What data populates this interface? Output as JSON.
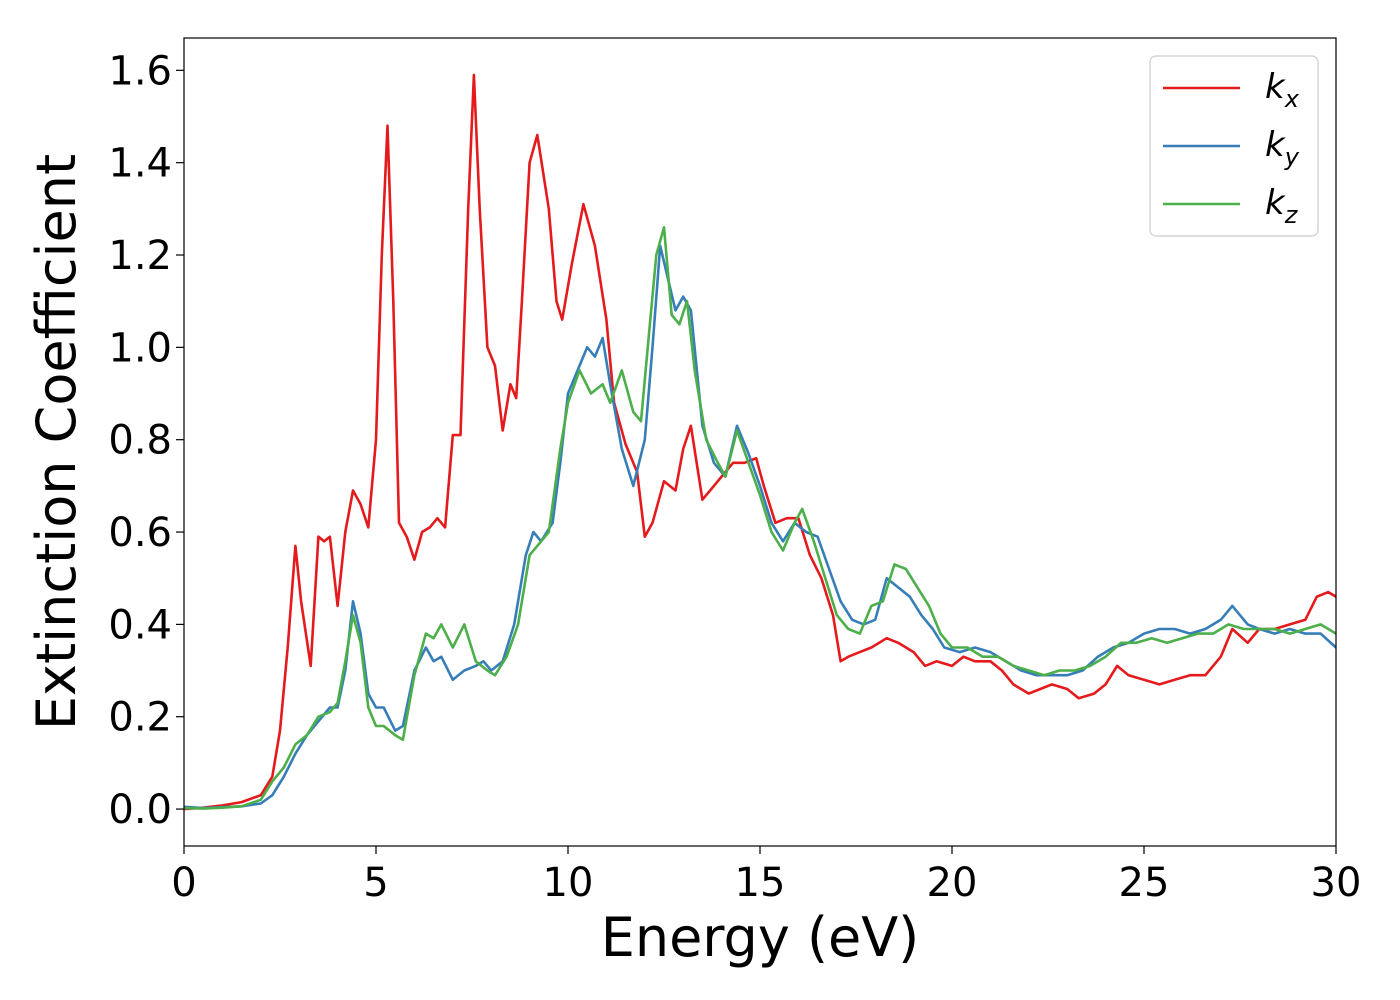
{
  "chart_data": {
    "type": "line",
    "xlabel": "Energy (eV)",
    "ylabel": "Extinction Coefficient",
    "xlim": [
      0,
      30
    ],
    "ylim": [
      -0.08,
      1.67
    ],
    "xticks": [
      0,
      5,
      10,
      15,
      20,
      25,
      30
    ],
    "yticks": [
      0.0,
      0.2,
      0.4,
      0.6,
      0.8,
      1.0,
      1.2,
      1.4,
      1.6
    ],
    "xtick_labels": [
      "0",
      "5",
      "10",
      "15",
      "20",
      "25",
      "30"
    ],
    "ytick_labels": [
      "0.0",
      "0.2",
      "0.4",
      "0.6",
      "0.8",
      "1.0",
      "1.2",
      "1.4",
      "1.6"
    ],
    "grid": false,
    "legend_position": "top-right",
    "series": [
      {
        "name": "k",
        "subscript": "x",
        "color": "#e41a1c",
        "points": [
          [
            0,
            0.0
          ],
          [
            0.5,
            0.003
          ],
          [
            1,
            0.008
          ],
          [
            1.5,
            0.015
          ],
          [
            2,
            0.03
          ],
          [
            2.3,
            0.07
          ],
          [
            2.5,
            0.17
          ],
          [
            2.7,
            0.35
          ],
          [
            2.9,
            0.57
          ],
          [
            3.05,
            0.45
          ],
          [
            3.3,
            0.31
          ],
          [
            3.5,
            0.59
          ],
          [
            3.65,
            0.58
          ],
          [
            3.8,
            0.59
          ],
          [
            4.0,
            0.44
          ],
          [
            4.2,
            0.6
          ],
          [
            4.4,
            0.69
          ],
          [
            4.6,
            0.66
          ],
          [
            4.8,
            0.61
          ],
          [
            5.0,
            0.8
          ],
          [
            5.15,
            1.2
          ],
          [
            5.3,
            1.48
          ],
          [
            5.45,
            1.1
          ],
          [
            5.6,
            0.62
          ],
          [
            5.8,
            0.59
          ],
          [
            6.0,
            0.54
          ],
          [
            6.2,
            0.6
          ],
          [
            6.4,
            0.61
          ],
          [
            6.6,
            0.63
          ],
          [
            6.8,
            0.61
          ],
          [
            7.0,
            0.81
          ],
          [
            7.2,
            0.81
          ],
          [
            7.4,
            1.3
          ],
          [
            7.55,
            1.59
          ],
          [
            7.7,
            1.3
          ],
          [
            7.9,
            1.0
          ],
          [
            8.1,
            0.96
          ],
          [
            8.3,
            0.82
          ],
          [
            8.5,
            0.92
          ],
          [
            8.65,
            0.89
          ],
          [
            8.8,
            1.1
          ],
          [
            9.0,
            1.4
          ],
          [
            9.2,
            1.46
          ],
          [
            9.5,
            1.3
          ],
          [
            9.7,
            1.1
          ],
          [
            9.85,
            1.06
          ],
          [
            10.1,
            1.18
          ],
          [
            10.4,
            1.31
          ],
          [
            10.7,
            1.22
          ],
          [
            11.0,
            1.06
          ],
          [
            11.2,
            0.88
          ],
          [
            11.5,
            0.79
          ],
          [
            11.8,
            0.73
          ],
          [
            12.0,
            0.59
          ],
          [
            12.2,
            0.62
          ],
          [
            12.5,
            0.71
          ],
          [
            12.8,
            0.69
          ],
          [
            13.0,
            0.78
          ],
          [
            13.2,
            0.83
          ],
          [
            13.5,
            0.67
          ],
          [
            13.8,
            0.7
          ],
          [
            14.0,
            0.72
          ],
          [
            14.3,
            0.75
          ],
          [
            14.6,
            0.75
          ],
          [
            14.9,
            0.76
          ],
          [
            15.1,
            0.7
          ],
          [
            15.4,
            0.62
          ],
          [
            15.7,
            0.63
          ],
          [
            16.0,
            0.63
          ],
          [
            16.3,
            0.55
          ],
          [
            16.6,
            0.5
          ],
          [
            16.9,
            0.42
          ],
          [
            17.1,
            0.32
          ],
          [
            17.3,
            0.33
          ],
          [
            17.6,
            0.34
          ],
          [
            17.9,
            0.35
          ],
          [
            18.3,
            0.37
          ],
          [
            18.6,
            0.36
          ],
          [
            19.0,
            0.34
          ],
          [
            19.3,
            0.31
          ],
          [
            19.6,
            0.32
          ],
          [
            20.0,
            0.31
          ],
          [
            20.3,
            0.33
          ],
          [
            20.6,
            0.32
          ],
          [
            21.0,
            0.32
          ],
          [
            21.3,
            0.3
          ],
          [
            21.6,
            0.27
          ],
          [
            22.0,
            0.25
          ],
          [
            22.3,
            0.26
          ],
          [
            22.6,
            0.27
          ],
          [
            23.0,
            0.26
          ],
          [
            23.3,
            0.24
          ],
          [
            23.7,
            0.25
          ],
          [
            24.0,
            0.27
          ],
          [
            24.3,
            0.31
          ],
          [
            24.6,
            0.29
          ],
          [
            25.0,
            0.28
          ],
          [
            25.4,
            0.27
          ],
          [
            25.8,
            0.28
          ],
          [
            26.2,
            0.29
          ],
          [
            26.6,
            0.29
          ],
          [
            27.0,
            0.33
          ],
          [
            27.3,
            0.39
          ],
          [
            27.7,
            0.36
          ],
          [
            28.0,
            0.39
          ],
          [
            28.4,
            0.39
          ],
          [
            28.8,
            0.4
          ],
          [
            29.2,
            0.41
          ],
          [
            29.5,
            0.46
          ],
          [
            29.8,
            0.47
          ],
          [
            30.0,
            0.46
          ]
        ]
      },
      {
        "name": "k",
        "subscript": "y",
        "color": "#377eb8",
        "points": [
          [
            0,
            0.005
          ],
          [
            0.5,
            0.002
          ],
          [
            1,
            0.004
          ],
          [
            1.5,
            0.006
          ],
          [
            2,
            0.012
          ],
          [
            2.3,
            0.03
          ],
          [
            2.6,
            0.07
          ],
          [
            2.9,
            0.12
          ],
          [
            3.2,
            0.16
          ],
          [
            3.5,
            0.19
          ],
          [
            3.8,
            0.22
          ],
          [
            4.0,
            0.22
          ],
          [
            4.2,
            0.3
          ],
          [
            4.4,
            0.45
          ],
          [
            4.6,
            0.38
          ],
          [
            4.8,
            0.25
          ],
          [
            5.0,
            0.22
          ],
          [
            5.2,
            0.22
          ],
          [
            5.5,
            0.17
          ],
          [
            5.7,
            0.18
          ],
          [
            6.0,
            0.3
          ],
          [
            6.3,
            0.35
          ],
          [
            6.5,
            0.32
          ],
          [
            6.7,
            0.33
          ],
          [
            7.0,
            0.28
          ],
          [
            7.3,
            0.3
          ],
          [
            7.6,
            0.31
          ],
          [
            7.8,
            0.32
          ],
          [
            8.0,
            0.3
          ],
          [
            8.3,
            0.32
          ],
          [
            8.6,
            0.4
          ],
          [
            8.9,
            0.55
          ],
          [
            9.1,
            0.6
          ],
          [
            9.3,
            0.58
          ],
          [
            9.6,
            0.62
          ],
          [
            9.8,
            0.75
          ],
          [
            10.0,
            0.9
          ],
          [
            10.3,
            0.96
          ],
          [
            10.5,
            1.0
          ],
          [
            10.7,
            0.98
          ],
          [
            10.9,
            1.02
          ],
          [
            11.1,
            0.92
          ],
          [
            11.4,
            0.78
          ],
          [
            11.7,
            0.7
          ],
          [
            12.0,
            0.8
          ],
          [
            12.2,
            1.0
          ],
          [
            12.4,
            1.22
          ],
          [
            12.6,
            1.15
          ],
          [
            12.8,
            1.08
          ],
          [
            13.0,
            1.11
          ],
          [
            13.2,
            1.08
          ],
          [
            13.5,
            0.83
          ],
          [
            13.8,
            0.75
          ],
          [
            14.1,
            0.72
          ],
          [
            14.4,
            0.83
          ],
          [
            14.7,
            0.77
          ],
          [
            15.0,
            0.7
          ],
          [
            15.3,
            0.62
          ],
          [
            15.6,
            0.58
          ],
          [
            15.9,
            0.62
          ],
          [
            16.2,
            0.6
          ],
          [
            16.5,
            0.59
          ],
          [
            16.8,
            0.52
          ],
          [
            17.1,
            0.45
          ],
          [
            17.4,
            0.41
          ],
          [
            17.7,
            0.4
          ],
          [
            18.0,
            0.41
          ],
          [
            18.3,
            0.5
          ],
          [
            18.6,
            0.48
          ],
          [
            18.9,
            0.46
          ],
          [
            19.2,
            0.42
          ],
          [
            19.5,
            0.39
          ],
          [
            19.8,
            0.35
          ],
          [
            20.2,
            0.34
          ],
          [
            20.6,
            0.35
          ],
          [
            21.0,
            0.34
          ],
          [
            21.4,
            0.32
          ],
          [
            21.8,
            0.3
          ],
          [
            22.2,
            0.29
          ],
          [
            22.6,
            0.29
          ],
          [
            23.0,
            0.29
          ],
          [
            23.4,
            0.3
          ],
          [
            23.8,
            0.33
          ],
          [
            24.2,
            0.35
          ],
          [
            24.6,
            0.36
          ],
          [
            25.0,
            0.38
          ],
          [
            25.4,
            0.39
          ],
          [
            25.8,
            0.39
          ],
          [
            26.2,
            0.38
          ],
          [
            26.6,
            0.39
          ],
          [
            27.0,
            0.41
          ],
          [
            27.3,
            0.44
          ],
          [
            27.7,
            0.4
          ],
          [
            28.0,
            0.39
          ],
          [
            28.4,
            0.38
          ],
          [
            28.8,
            0.39
          ],
          [
            29.2,
            0.38
          ],
          [
            29.6,
            0.38
          ],
          [
            30.0,
            0.35
          ]
        ]
      },
      {
        "name": "k",
        "subscript": "z",
        "color": "#4daf4a",
        "points": [
          [
            0,
            0.002
          ],
          [
            0.5,
            0.001
          ],
          [
            1,
            0.003
          ],
          [
            1.5,
            0.006
          ],
          [
            2,
            0.02
          ],
          [
            2.3,
            0.06
          ],
          [
            2.6,
            0.09
          ],
          [
            2.9,
            0.14
          ],
          [
            3.2,
            0.16
          ],
          [
            3.5,
            0.2
          ],
          [
            3.8,
            0.21
          ],
          [
            4.0,
            0.23
          ],
          [
            4.2,
            0.32
          ],
          [
            4.4,
            0.42
          ],
          [
            4.6,
            0.36
          ],
          [
            4.8,
            0.22
          ],
          [
            5.0,
            0.18
          ],
          [
            5.2,
            0.18
          ],
          [
            5.5,
            0.16
          ],
          [
            5.7,
            0.15
          ],
          [
            6.0,
            0.29
          ],
          [
            6.3,
            0.38
          ],
          [
            6.5,
            0.37
          ],
          [
            6.7,
            0.4
          ],
          [
            7.0,
            0.35
          ],
          [
            7.3,
            0.4
          ],
          [
            7.6,
            0.32
          ],
          [
            7.9,
            0.3
          ],
          [
            8.1,
            0.29
          ],
          [
            8.4,
            0.33
          ],
          [
            8.7,
            0.4
          ],
          [
            9.0,
            0.55
          ],
          [
            9.2,
            0.57
          ],
          [
            9.5,
            0.6
          ],
          [
            9.8,
            0.78
          ],
          [
            10.0,
            0.88
          ],
          [
            10.3,
            0.95
          ],
          [
            10.6,
            0.9
          ],
          [
            10.9,
            0.92
          ],
          [
            11.1,
            0.88
          ],
          [
            11.4,
            0.95
          ],
          [
            11.7,
            0.86
          ],
          [
            11.9,
            0.84
          ],
          [
            12.1,
            1.02
          ],
          [
            12.3,
            1.2
          ],
          [
            12.5,
            1.26
          ],
          [
            12.7,
            1.07
          ],
          [
            12.9,
            1.05
          ],
          [
            13.1,
            1.1
          ],
          [
            13.3,
            0.95
          ],
          [
            13.6,
            0.8
          ],
          [
            13.9,
            0.75
          ],
          [
            14.1,
            0.72
          ],
          [
            14.4,
            0.82
          ],
          [
            14.7,
            0.75
          ],
          [
            15.0,
            0.68
          ],
          [
            15.3,
            0.6
          ],
          [
            15.6,
            0.56
          ],
          [
            15.9,
            0.62
          ],
          [
            16.1,
            0.65
          ],
          [
            16.4,
            0.58
          ],
          [
            16.7,
            0.5
          ],
          [
            17.0,
            0.42
          ],
          [
            17.3,
            0.39
          ],
          [
            17.6,
            0.38
          ],
          [
            17.9,
            0.44
          ],
          [
            18.2,
            0.45
          ],
          [
            18.5,
            0.53
          ],
          [
            18.8,
            0.52
          ],
          [
            19.1,
            0.48
          ],
          [
            19.4,
            0.44
          ],
          [
            19.7,
            0.38
          ],
          [
            20.0,
            0.35
          ],
          [
            20.4,
            0.35
          ],
          [
            20.8,
            0.33
          ],
          [
            21.2,
            0.33
          ],
          [
            21.6,
            0.31
          ],
          [
            22.0,
            0.3
          ],
          [
            22.4,
            0.29
          ],
          [
            22.8,
            0.3
          ],
          [
            23.2,
            0.3
          ],
          [
            23.6,
            0.31
          ],
          [
            24.0,
            0.33
          ],
          [
            24.4,
            0.36
          ],
          [
            24.8,
            0.36
          ],
          [
            25.2,
            0.37
          ],
          [
            25.6,
            0.36
          ],
          [
            26.0,
            0.37
          ],
          [
            26.4,
            0.38
          ],
          [
            26.8,
            0.38
          ],
          [
            27.2,
            0.4
          ],
          [
            27.6,
            0.39
          ],
          [
            28.0,
            0.39
          ],
          [
            28.4,
            0.39
          ],
          [
            28.8,
            0.38
          ],
          [
            29.2,
            0.39
          ],
          [
            29.6,
            0.4
          ],
          [
            30.0,
            0.38
          ]
        ]
      }
    ]
  }
}
